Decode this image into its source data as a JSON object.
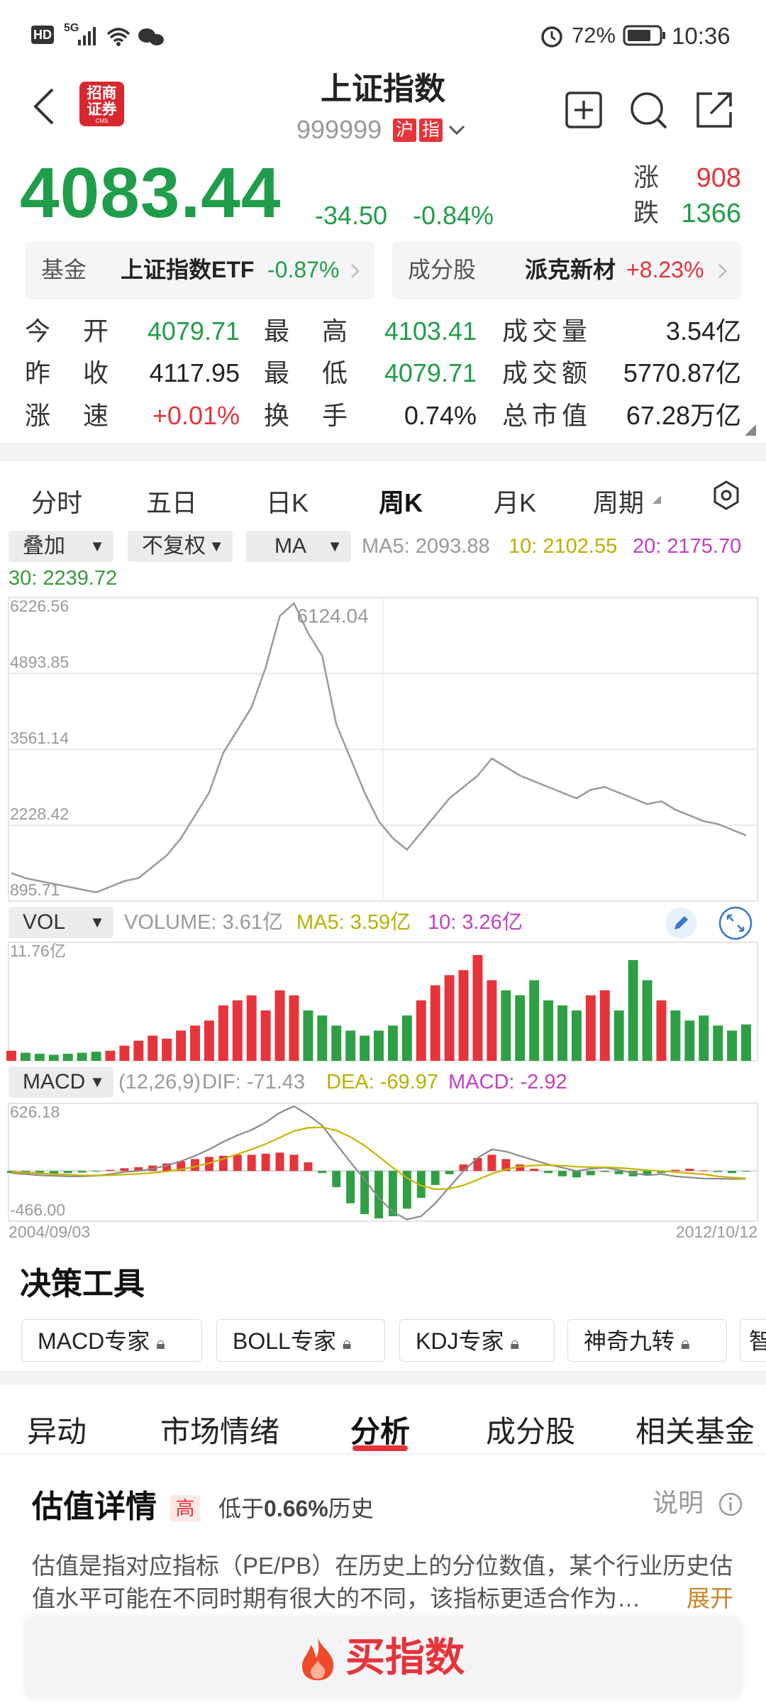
{
  "status_bar": {
    "hd": "HD",
    "network": "5G",
    "battery": "72%",
    "time": "10:36"
  },
  "header": {
    "logo_top": "招商",
    "logo_bottom": "证券",
    "logo_sub": "CMS",
    "title": "上证指数",
    "code": "999999",
    "badge1": "沪",
    "badge2": "指"
  },
  "quote": {
    "price": "4083.44",
    "change": "-34.50",
    "pct": "-0.84%",
    "up_label": "涨",
    "up": "908",
    "down_label": "跌",
    "down": "1366"
  },
  "cards": [
    {
      "label": "基金",
      "name": "上证指数ETF",
      "pct": "-0.87%"
    },
    {
      "label": "成分股",
      "name": "派克新材",
      "pct": "+8.23%"
    }
  ],
  "stats": [
    [
      "今开",
      "4079.71",
      "最高",
      "4103.41",
      "成交量",
      "3.54亿"
    ],
    [
      "昨收",
      "4117.95",
      "最低",
      "4079.71",
      "成交额",
      "5770.87亿"
    ],
    [
      "涨速",
      "+0.01%",
      "换手",
      "0.74%",
      "总市值",
      "67.28万亿"
    ]
  ],
  "tabs": [
    "分时",
    "五日",
    "日K",
    "周K",
    "月K",
    "周期"
  ],
  "selectors": [
    "叠加",
    "不复权",
    "MA"
  ],
  "ma_labels": [
    "MA5: 2093.88",
    "10: 2102.55",
    "20: 2175.70",
    "30: 2239.72"
  ],
  "chart": {
    "price": {
      "values": [
        1390,
        1300,
        1250,
        1200,
        1150,
        1100,
        1050,
        1150,
        1250,
        1300,
        1500,
        1700,
        2000,
        2400,
        2800,
        3500,
        3900,
        4300,
        5000,
        5900,
        6124.04,
        5600,
        5200,
        4000,
        3400,
        2800,
        2300,
        2000,
        1800,
        2100,
        2400,
        2700,
        2900,
        3100,
        3400,
        3250,
        3100,
        3000,
        2900,
        2800,
        2700,
        2850,
        2900,
        2800,
        2700,
        2600,
        2650,
        2500,
        2400,
        2300,
        2250,
        2150,
        2050
      ],
      "ylim": [
        895.71,
        6226.56
      ],
      "yticks": [
        895.71,
        2228.42,
        3561.14,
        4893.85,
        6226.56
      ],
      "color": "#9a9a9a"
    },
    "volume": {
      "values": [
        1.0,
        0.8,
        0.7,
        0.6,
        0.7,
        0.8,
        0.9,
        1.0,
        1.5,
        2.0,
        2.5,
        2.2,
        3.0,
        3.5,
        4.0,
        5.5,
        6.0,
        6.5,
        5.0,
        7.0,
        6.5,
        5.0,
        4.5,
        3.5,
        3.0,
        2.5,
        3.0,
        3.5,
        4.5,
        6.0,
        7.5,
        8.5,
        9.0,
        10.5,
        8.0,
        7.0,
        6.5,
        8.0,
        6.0,
        5.5,
        5.0,
        6.5,
        7.0,
        5.0,
        10.0,
        8.0,
        6.0,
        5.0,
        4.0,
        4.5,
        3.5,
        3.0,
        3.61
      ],
      "ylim": [
        0,
        11.76
      ],
      "yticks": [
        {
          "value": 11.76,
          "label": "11.76亿"
        }
      ]
    },
    "macd": {
      "hist": [
        -20,
        -30,
        -30,
        -25,
        -20,
        -15,
        -5,
        10,
        25,
        35,
        50,
        70,
        90,
        110,
        130,
        140,
        150,
        150,
        160,
        170,
        150,
        80,
        -20,
        -150,
        -300,
        -400,
        -440,
        -420,
        -350,
        -250,
        -130,
        -30,
        60,
        120,
        150,
        110,
        60,
        20,
        -20,
        -50,
        -60,
        -40,
        -10,
        -30,
        -50,
        -40,
        -20,
        10,
        20,
        5,
        -10,
        -20,
        -2.92
      ],
      "dif": [
        -20,
        -30,
        -40,
        -45,
        -50,
        -50,
        -45,
        -30,
        -10,
        0,
        20,
        50,
        90,
        140,
        200,
        270,
        330,
        380,
        450,
        540,
        600,
        520,
        420,
        250,
        80,
        -80,
        -250,
        -380,
        -450,
        -420,
        -300,
        -150,
        0,
        120,
        200,
        180,
        140,
        100,
        60,
        30,
        0,
        20,
        30,
        10,
        -20,
        -40,
        -30,
        -50,
        -60,
        -70,
        -72,
        -75,
        -71.43
      ],
      "dea": [
        -10,
        -15,
        -22,
        -30,
        -35,
        -40,
        -42,
        -40,
        -34,
        -27,
        -18,
        -4,
        15,
        40,
        72,
        112,
        155,
        200,
        250,
        310,
        370,
        400,
        405,
        375,
        315,
        235,
        135,
        30,
        -66,
        -137,
        -170,
        -166,
        -133,
        -82,
        -26,
        15,
        40,
        52,
        54,
        49,
        39,
        35,
        34,
        29,
        19,
        7,
        -1,
        -11,
        -21,
        -31,
        -50,
        -60,
        -69.97
      ],
      "ylim": [
        -466,
        626.18
      ],
      "yticks": [
        {
          "value": -466,
          "label": "-466.00"
        },
        626.18
      ],
      "dif_color": "#8a8a8a",
      "dea_color": "#c8b400"
    },
    "up_color": "#e5343a",
    "down_color": "#2ea043",
    "x_labels": [
      "2004/09/03",
      "2012/10/12"
    ]
  },
  "vol_header": {
    "selector": "VOL",
    "labels": [
      "VOLUME: 3.61亿",
      "MA5: 3.59亿",
      "10: 3.26亿"
    ]
  },
  "macd_header": {
    "selector": "MACD",
    "labels": [
      "(12,26,9)",
      "DIF: -71.43",
      "DEA: -69.97",
      "MACD: -2.92"
    ]
  },
  "tools": {
    "title": "决策工具",
    "items": [
      "MACD专家",
      "BOLL专家",
      "KDJ专家",
      "神奇九转",
      "智"
    ]
  },
  "bottom_tabs": [
    "异动",
    "市场情绪",
    "分析",
    "成分股",
    "相关基金"
  ],
  "valuation": {
    "title": "估值详情",
    "badge": "高",
    "summary_pre": "低于",
    "summary_pct": "0.66%",
    "summary_post": "历史",
    "help": "说明",
    "desc": "估值是指对应指标（PE/PB）在历史上的分位数值，某个行业历史估值水平可能在不同时期有很大的不同，该指标更适合作为…",
    "expand": "展开"
  },
  "buy_button": "买指数"
}
